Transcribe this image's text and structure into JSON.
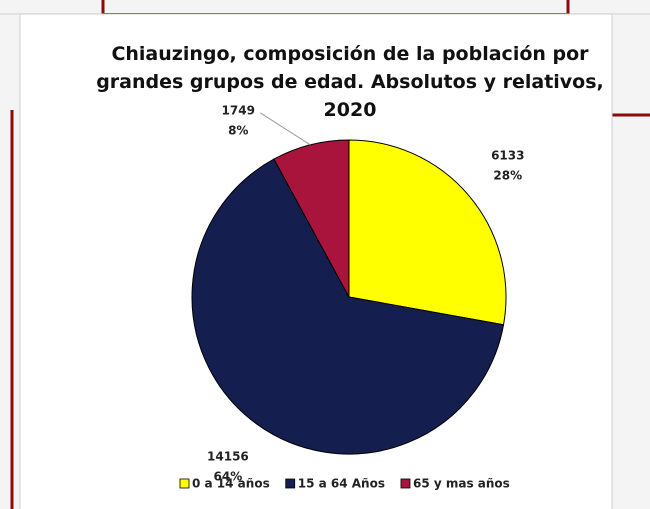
{
  "chart_data": {
    "type": "pie",
    "title": "Chiauzingo, composición de la población por grandes grupos de edad. Absolutos y relativos, 2020",
    "categories": [
      "0 a 14 años",
      "15 a 64 Años",
      "65 y mas años"
    ],
    "values": [
      6133,
      14156,
      1749
    ],
    "percent_labels": [
      "28%",
      "64%",
      "8%"
    ],
    "colors": [
      "#ffff00",
      "#141e4f",
      "#a8143c"
    ],
    "legend": "bottom"
  }
}
